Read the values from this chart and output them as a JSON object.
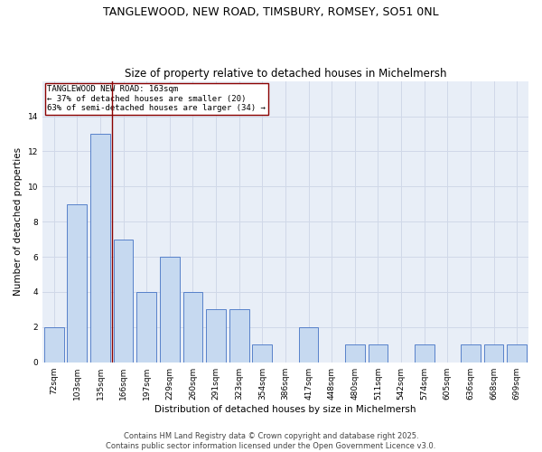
{
  "title": "TANGLEWOOD, NEW ROAD, TIMSBURY, ROMSEY, SO51 0NL",
  "subtitle": "Size of property relative to detached houses in Michelmersh",
  "xlabel": "Distribution of detached houses by size in Michelmersh",
  "ylabel": "Number of detached properties",
  "categories": [
    "72sqm",
    "103sqm",
    "135sqm",
    "166sqm",
    "197sqm",
    "229sqm",
    "260sqm",
    "291sqm",
    "323sqm",
    "354sqm",
    "386sqm",
    "417sqm",
    "448sqm",
    "480sqm",
    "511sqm",
    "542sqm",
    "574sqm",
    "605sqm",
    "636sqm",
    "668sqm",
    "699sqm"
  ],
  "values": [
    2,
    9,
    13,
    7,
    4,
    6,
    4,
    3,
    3,
    1,
    0,
    2,
    0,
    1,
    1,
    0,
    1,
    0,
    1,
    1,
    1
  ],
  "bar_color": "#c6d9f0",
  "bar_edge_color": "#4472c4",
  "vline_color": "#8B0000",
  "annotation_text": "TANGLEWOOD NEW ROAD: 163sqm\n← 37% of detached houses are smaller (20)\n63% of semi-detached houses are larger (34) →",
  "annotation_box_color": "#ffffff",
  "annotation_box_edge": "#8B0000",
  "ylim": [
    0,
    16
  ],
  "yticks": [
    0,
    2,
    4,
    6,
    8,
    10,
    12,
    14
  ],
  "grid_color": "#d0d8e8",
  "background_color": "#e8eef7",
  "footer": "Contains HM Land Registry data © Crown copyright and database right 2025.\nContains public sector information licensed under the Open Government Licence v3.0.",
  "title_fontsize": 9,
  "subtitle_fontsize": 8.5,
  "axis_label_fontsize": 7.5,
  "tick_fontsize": 6.5,
  "annotation_fontsize": 6.5,
  "footer_fontsize": 6
}
